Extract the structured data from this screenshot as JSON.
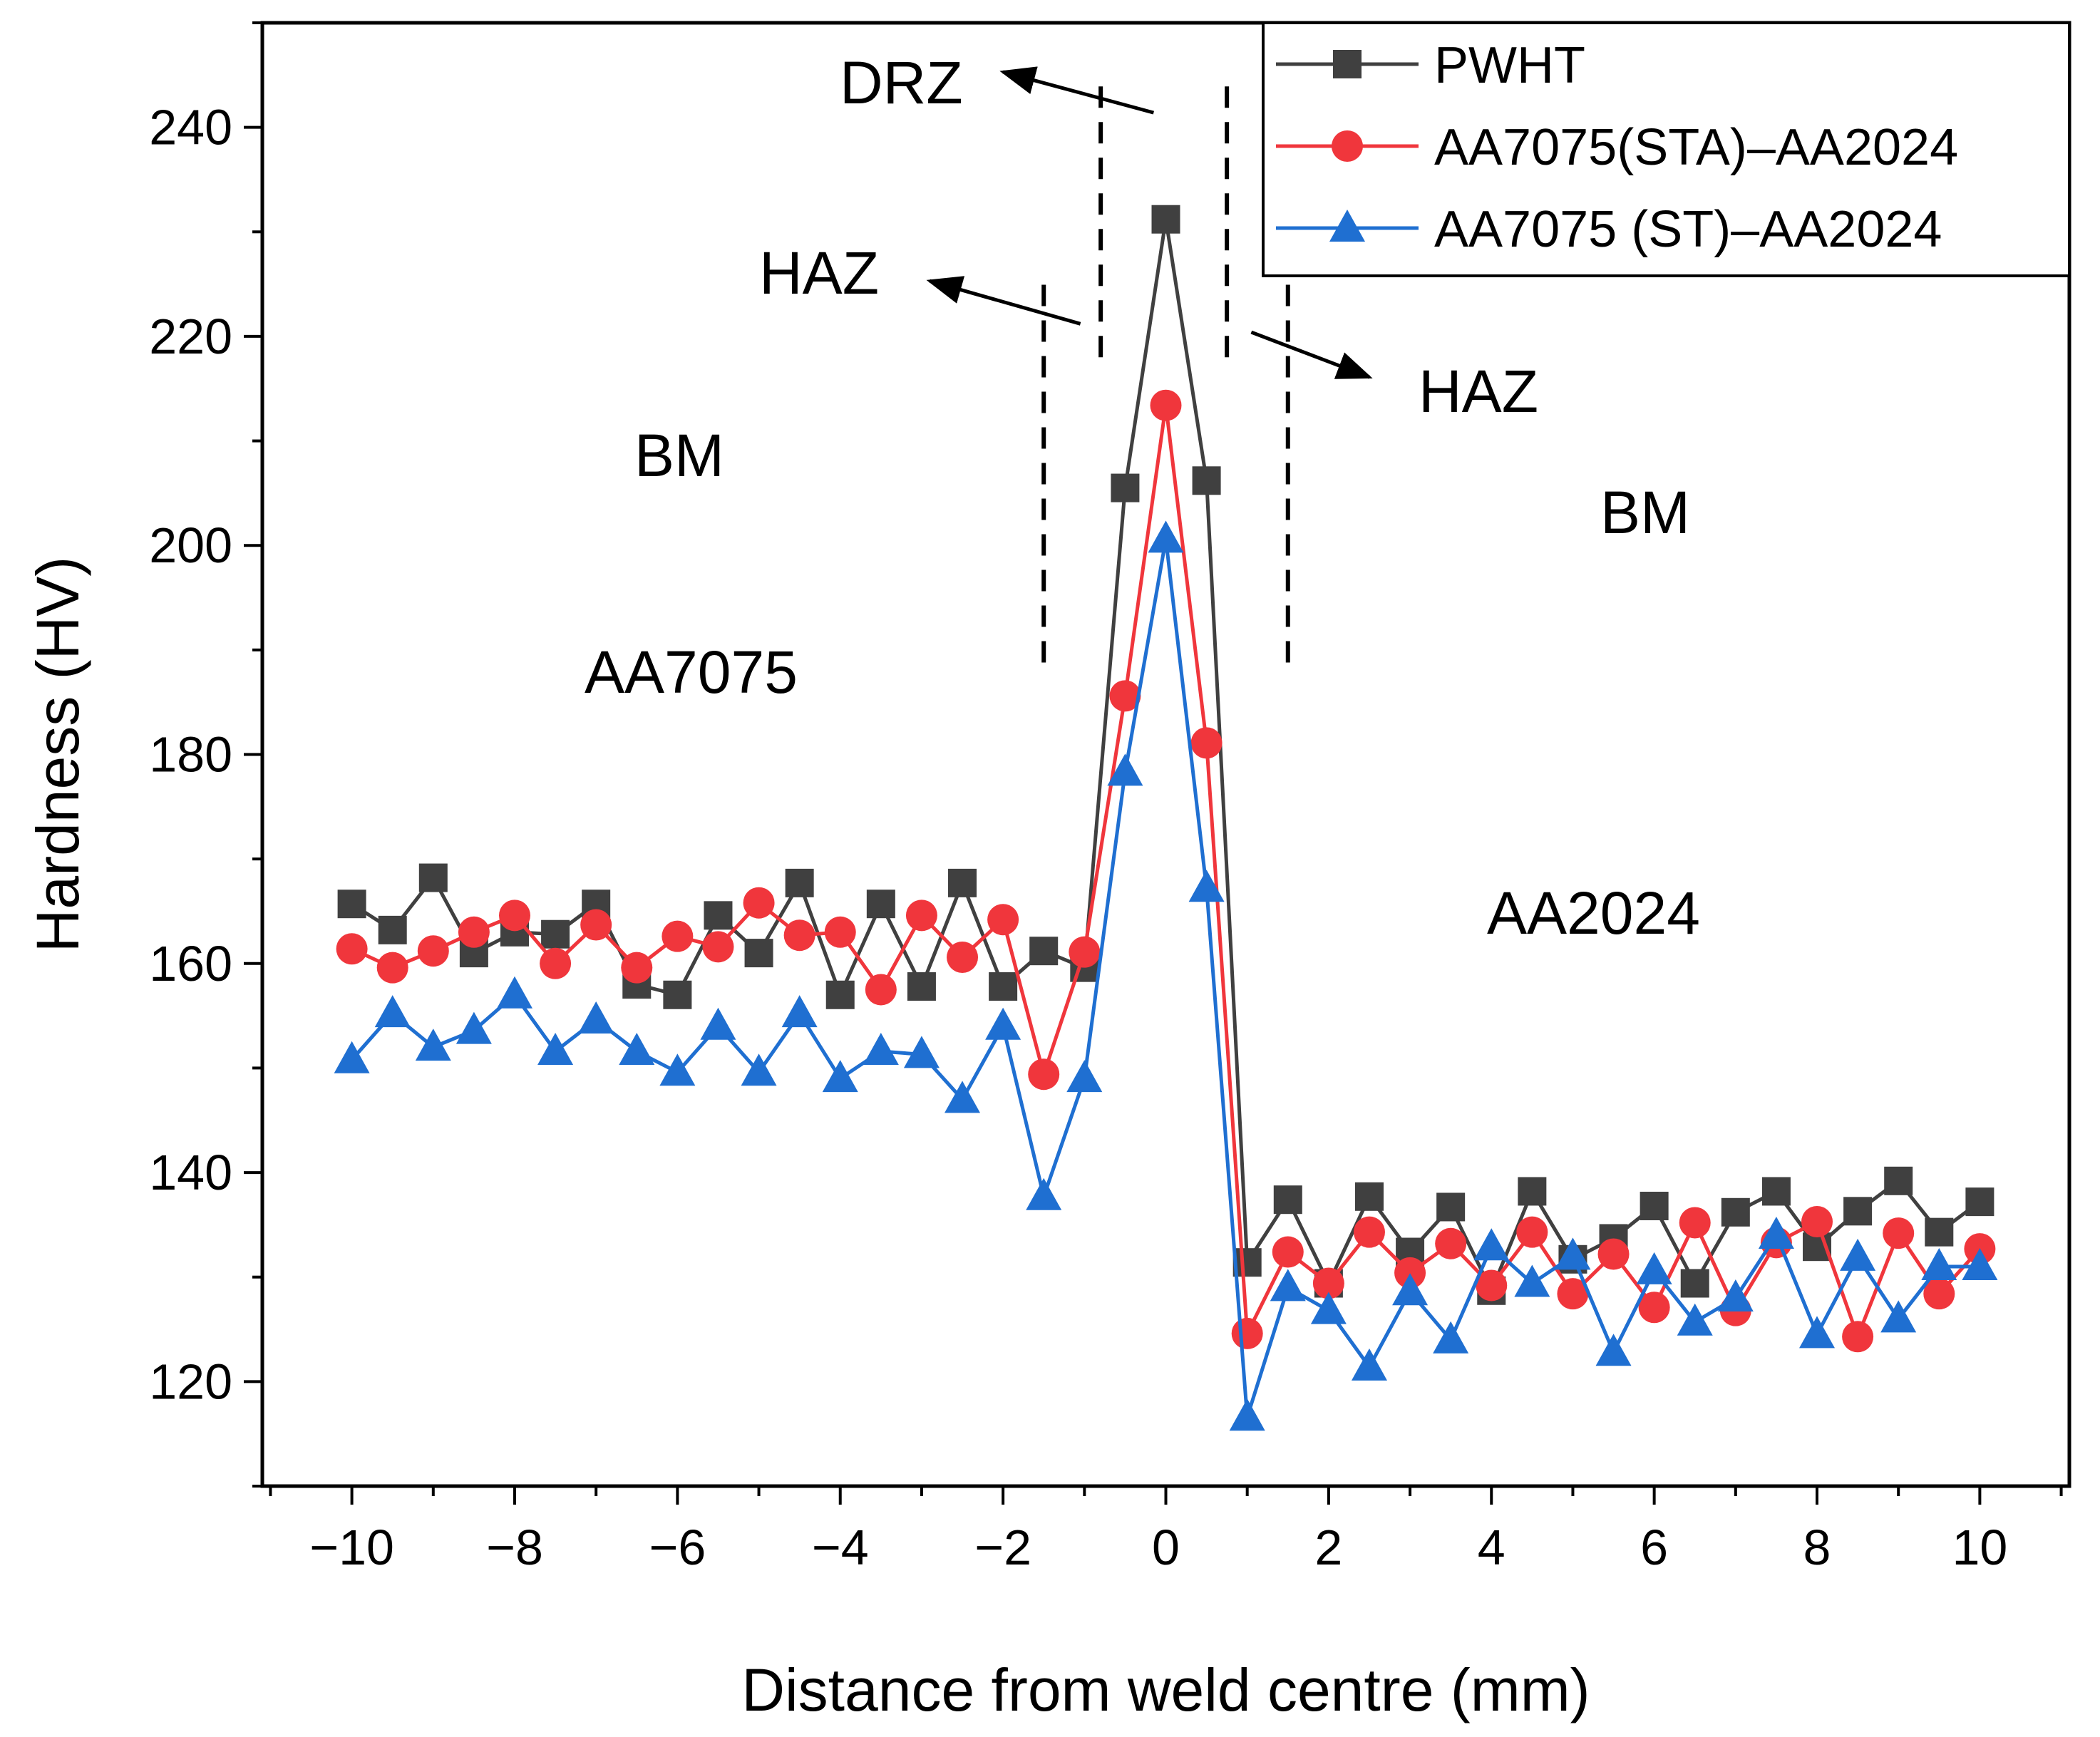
{
  "chart_data": {
    "type": "line",
    "title": "",
    "xlabel": "Distance from weld centre (mm)",
    "ylabel": "Hardness (HV)",
    "xlim": [
      -11.1,
      11.1
    ],
    "ylim": [
      110,
      250
    ],
    "xticks": [
      -10,
      -8,
      -6,
      -4,
      -2,
      0,
      2,
      4,
      6,
      8,
      10
    ],
    "xtick_labels": [
      "−10",
      "−8",
      "−6",
      "−4",
      "−2",
      "0",
      "2",
      "4",
      "6",
      "8",
      "10"
    ],
    "yticks": [
      120,
      140,
      160,
      180,
      200,
      220,
      240
    ],
    "ytick_labels": [
      "120",
      "140",
      "160",
      "180",
      "200",
      "220",
      "240"
    ],
    "grid": false,
    "legend_position": "top-right",
    "x": [
      -10,
      -9.5,
      -9,
      -8.5,
      -8,
      -7.5,
      -7,
      -6.5,
      -6,
      -5.5,
      -5,
      -4.5,
      -4,
      -3.5,
      -3,
      -2.5,
      -2,
      -1.5,
      -1,
      -0.5,
      0,
      0.5,
      1,
      1.5,
      2,
      2.5,
      3,
      3.5,
      4,
      4.5,
      5,
      5.5,
      6,
      6.5,
      7,
      7.5,
      8,
      8.5,
      9,
      9.5,
      10
    ],
    "series": [
      {
        "name": "PWHT",
        "color": "#404040",
        "marker": "square",
        "values": [
          165.7,
          163.2,
          168.2,
          161.0,
          163.0,
          162.8,
          165.7,
          158.0,
          157.0,
          164.6,
          161.0,
          167.7,
          157.0,
          165.7,
          157.8,
          167.7,
          157.8,
          161.2,
          159.6,
          205.5,
          231.2,
          206.2,
          131.4,
          137.4,
          129.4,
          137.7,
          132.4,
          136.7,
          128.7,
          138.2,
          131.7,
          133.7,
          136.8,
          129.4,
          136.2,
          138.2,
          132.9,
          136.3,
          139.2,
          134.3,
          137.2
        ]
      },
      {
        "name": "AA7075(STA)–AA2024",
        "color": "#f0363c",
        "marker": "circle",
        "values": [
          161.4,
          159.6,
          161.2,
          163.0,
          164.6,
          160.0,
          163.7,
          159.6,
          162.6,
          161.6,
          165.8,
          162.7,
          163.0,
          157.5,
          164.6,
          160.6,
          164.2,
          149.4,
          161.1,
          185.6,
          213.4,
          181.1,
          124.6,
          132.4,
          129.4,
          134.3,
          130.4,
          133.2,
          129.2,
          134.3,
          128.4,
          132.2,
          127.1,
          135.2,
          126.8,
          133.3,
          135.3,
          124.3,
          134.2,
          128.4,
          132.7
        ]
      },
      {
        "name": "AA7075 (ST)–AA2024",
        "color": "#1f6fd1",
        "marker": "triangle",
        "values": [
          150.8,
          155.2,
          152.0,
          153.6,
          157.0,
          151.6,
          154.6,
          151.6,
          149.6,
          154.0,
          149.6,
          155.2,
          149.0,
          151.6,
          151.3,
          147.0,
          154.0,
          137.7,
          149.0,
          178.3,
          200.6,
          167.2,
          116.6,
          129.0,
          126.8,
          121.4,
          128.6,
          124.0,
          132.9,
          129.4,
          132.0,
          122.8,
          130.6,
          125.7,
          128.0,
          134.0,
          124.5,
          131.9,
          126.0,
          131.0,
          131.0
        ]
      }
    ],
    "annotations": {
      "drz": "DRZ",
      "haz_left": "HAZ",
      "haz_right": "HAZ",
      "bm_left": "BM",
      "bm_right": "BM",
      "alloy_left": "AA7075",
      "alloy_right": "AA2024"
    },
    "zone_boundaries_mm": [
      -1.5,
      -0.8,
      0.75,
      1.5
    ]
  }
}
